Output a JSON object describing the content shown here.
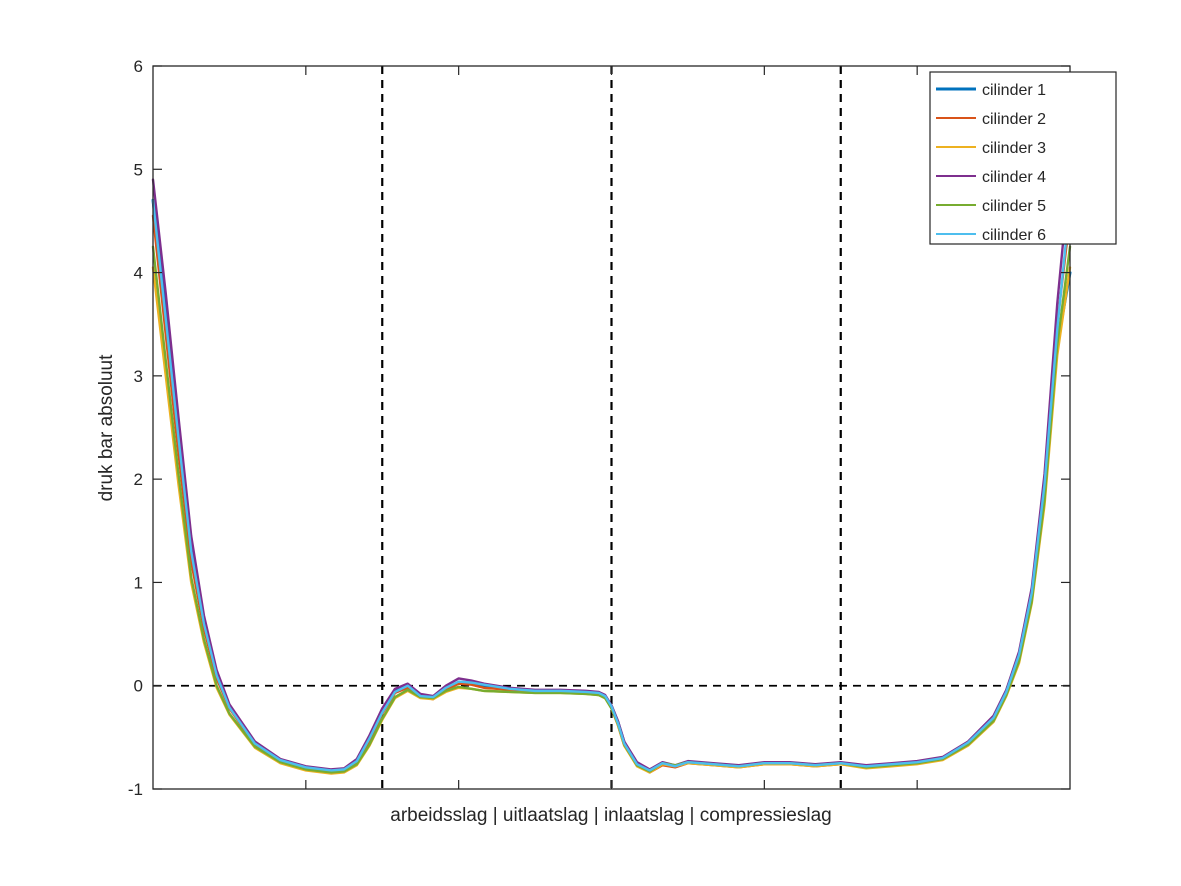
{
  "chart_data": {
    "type": "line",
    "title": "",
    "xlabel": "arbeidsslag | uitlaatslag | inlaatslag | compressieslag",
    "ylabel": "druk bar absoluut",
    "xlim": [
      0,
      720
    ],
    "ylim": [
      -1,
      6
    ],
    "yticks": [
      -1,
      0,
      1,
      2,
      3,
      4,
      5,
      6
    ],
    "xticks_unlabeled": [
      120,
      240,
      360,
      480,
      600
    ],
    "grid": false,
    "legend_position": "top-right",
    "reference_lines": {
      "vertical_dashed_x": [
        180,
        360,
        540
      ],
      "horizontal_dashed_y": [
        0
      ]
    },
    "series": [
      {
        "name": "cilinder 1",
        "color": "#0072BD",
        "x": [
          0,
          10,
          20,
          30,
          40,
          50,
          60,
          80,
          100,
          120,
          140,
          150,
          160,
          170,
          180,
          190,
          200,
          210,
          220,
          230,
          240,
          250,
          260,
          280,
          300,
          320,
          340,
          350,
          355,
          360,
          365,
          370,
          380,
          390,
          400,
          410,
          420,
          440,
          460,
          480,
          500,
          520,
          540,
          560,
          580,
          600,
          620,
          640,
          660,
          670,
          680,
          690,
          700,
          710,
          720
        ],
        "y": [
          4.7,
          3.6,
          2.4,
          1.3,
          0.6,
          0.1,
          -0.2,
          -0.55,
          -0.72,
          -0.79,
          -0.82,
          -0.81,
          -0.72,
          -0.5,
          -0.25,
          -0.05,
          0.0,
          -0.1,
          -0.12,
          -0.03,
          0.03,
          0.03,
          0.0,
          -0.03,
          -0.05,
          -0.05,
          -0.06,
          -0.07,
          -0.1,
          -0.2,
          -0.35,
          -0.55,
          -0.75,
          -0.82,
          -0.75,
          -0.78,
          -0.74,
          -0.76,
          -0.78,
          -0.75,
          -0.75,
          -0.77,
          -0.75,
          -0.78,
          -0.76,
          -0.74,
          -0.7,
          -0.55,
          -0.3,
          -0.05,
          0.3,
          0.9,
          1.9,
          3.3,
          4.0
        ]
      },
      {
        "name": "cilinder 2",
        "color": "#D95319",
        "x": [
          0,
          10,
          20,
          30,
          40,
          50,
          60,
          80,
          100,
          120,
          140,
          150,
          160,
          170,
          180,
          190,
          200,
          210,
          220,
          230,
          240,
          250,
          260,
          280,
          300,
          320,
          340,
          350,
          355,
          360,
          365,
          370,
          380,
          390,
          400,
          410,
          420,
          440,
          460,
          480,
          500,
          520,
          540,
          560,
          580,
          600,
          620,
          640,
          660,
          670,
          680,
          690,
          700,
          710,
          720
        ],
        "y": [
          4.55,
          3.4,
          2.25,
          1.2,
          0.55,
          0.07,
          -0.22,
          -0.57,
          -0.73,
          -0.8,
          -0.83,
          -0.82,
          -0.74,
          -0.53,
          -0.27,
          -0.07,
          -0.02,
          -0.11,
          -0.13,
          -0.04,
          0.02,
          0.01,
          -0.02,
          -0.04,
          -0.06,
          -0.06,
          -0.07,
          -0.08,
          -0.11,
          -0.22,
          -0.38,
          -0.58,
          -0.77,
          -0.84,
          -0.77,
          -0.79,
          -0.75,
          -0.77,
          -0.79,
          -0.76,
          -0.76,
          -0.78,
          -0.76,
          -0.79,
          -0.77,
          -0.75,
          -0.71,
          -0.56,
          -0.32,
          -0.07,
          0.28,
          0.88,
          1.95,
          3.5,
          4.55
        ]
      },
      {
        "name": "cilinder 3",
        "color": "#EDB120",
        "x": [
          0,
          10,
          20,
          30,
          40,
          50,
          60,
          80,
          100,
          120,
          140,
          150,
          160,
          170,
          180,
          190,
          200,
          210,
          220,
          230,
          240,
          250,
          260,
          280,
          300,
          320,
          340,
          350,
          355,
          360,
          365,
          370,
          380,
          390,
          400,
          410,
          420,
          440,
          460,
          480,
          500,
          520,
          540,
          560,
          580,
          600,
          620,
          640,
          660,
          670,
          680,
          690,
          700,
          710,
          720
        ],
        "y": [
          4.05,
          3.0,
          1.95,
          1.0,
          0.42,
          -0.02,
          -0.28,
          -0.6,
          -0.75,
          -0.82,
          -0.85,
          -0.84,
          -0.77,
          -0.58,
          -0.33,
          -0.12,
          -0.05,
          -0.12,
          -0.13,
          -0.06,
          -0.02,
          -0.03,
          -0.05,
          -0.06,
          -0.07,
          -0.07,
          -0.08,
          -0.09,
          -0.12,
          -0.22,
          -0.38,
          -0.58,
          -0.78,
          -0.84,
          -0.76,
          -0.78,
          -0.75,
          -0.77,
          -0.79,
          -0.76,
          -0.76,
          -0.78,
          -0.76,
          -0.8,
          -0.78,
          -0.76,
          -0.72,
          -0.58,
          -0.35,
          -0.1,
          0.22,
          0.8,
          1.75,
          3.2,
          4.05
        ]
      },
      {
        "name": "cilinder 4",
        "color": "#7E2F8E",
        "x": [
          0,
          10,
          20,
          30,
          40,
          50,
          60,
          80,
          100,
          120,
          140,
          150,
          160,
          170,
          180,
          190,
          200,
          210,
          220,
          230,
          240,
          250,
          260,
          280,
          300,
          320,
          340,
          350,
          355,
          360,
          365,
          370,
          380,
          390,
          400,
          410,
          420,
          440,
          460,
          480,
          500,
          520,
          540,
          560,
          580,
          600,
          620,
          640,
          660,
          670,
          680,
          690,
          700,
          710,
          720
        ],
        "y": [
          4.9,
          3.8,
          2.6,
          1.45,
          0.68,
          0.15,
          -0.18,
          -0.54,
          -0.71,
          -0.78,
          -0.81,
          -0.8,
          -0.71,
          -0.48,
          -0.22,
          -0.03,
          0.02,
          -0.08,
          -0.1,
          0.0,
          0.07,
          0.05,
          0.02,
          -0.02,
          -0.04,
          -0.04,
          -0.05,
          -0.06,
          -0.09,
          -0.19,
          -0.34,
          -0.54,
          -0.74,
          -0.81,
          -0.74,
          -0.77,
          -0.73,
          -0.75,
          -0.77,
          -0.74,
          -0.74,
          -0.76,
          -0.74,
          -0.77,
          -0.75,
          -0.73,
          -0.69,
          -0.54,
          -0.29,
          -0.04,
          0.33,
          0.95,
          2.05,
          3.7,
          5.0
        ]
      },
      {
        "name": "cilinder 5",
        "color": "#77AC30",
        "x": [
          0,
          10,
          20,
          30,
          40,
          50,
          60,
          80,
          100,
          120,
          140,
          150,
          160,
          170,
          180,
          190,
          200,
          210,
          220,
          230,
          240,
          250,
          260,
          280,
          300,
          320,
          340,
          350,
          355,
          360,
          365,
          370,
          380,
          390,
          400,
          410,
          420,
          440,
          460,
          480,
          500,
          520,
          540,
          560,
          580,
          600,
          620,
          640,
          660,
          670,
          680,
          690,
          700,
          710,
          720
        ],
        "y": [
          4.25,
          3.15,
          2.05,
          1.05,
          0.45,
          0.0,
          -0.27,
          -0.59,
          -0.74,
          -0.81,
          -0.84,
          -0.83,
          -0.76,
          -0.57,
          -0.32,
          -0.11,
          -0.04,
          -0.11,
          -0.12,
          -0.05,
          -0.01,
          -0.03,
          -0.05,
          -0.06,
          -0.07,
          -0.07,
          -0.08,
          -0.09,
          -0.12,
          -0.22,
          -0.37,
          -0.57,
          -0.77,
          -0.83,
          -0.75,
          -0.77,
          -0.74,
          -0.76,
          -0.78,
          -0.75,
          -0.75,
          -0.77,
          -0.75,
          -0.79,
          -0.77,
          -0.75,
          -0.71,
          -0.57,
          -0.34,
          -0.09,
          0.24,
          0.82,
          1.8,
          3.3,
          4.25
        ]
      },
      {
        "name": "cilinder 6",
        "color": "#4DBEEE",
        "x": [
          0,
          10,
          20,
          30,
          40,
          50,
          60,
          80,
          100,
          120,
          140,
          150,
          160,
          170,
          180,
          190,
          200,
          210,
          220,
          230,
          240,
          250,
          260,
          280,
          300,
          320,
          340,
          350,
          355,
          360,
          365,
          370,
          380,
          390,
          400,
          410,
          420,
          440,
          460,
          480,
          500,
          520,
          540,
          560,
          580,
          600,
          620,
          640,
          660,
          670,
          680,
          690,
          700,
          710,
          720
        ],
        "y": [
          4.7,
          3.55,
          2.4,
          1.3,
          0.6,
          0.1,
          -0.21,
          -0.56,
          -0.72,
          -0.79,
          -0.82,
          -0.81,
          -0.73,
          -0.51,
          -0.26,
          -0.06,
          0.0,
          -0.1,
          -0.11,
          -0.02,
          0.04,
          0.03,
          0.01,
          -0.03,
          -0.05,
          -0.05,
          -0.06,
          -0.07,
          -0.1,
          -0.2,
          -0.36,
          -0.56,
          -0.76,
          -0.82,
          -0.75,
          -0.78,
          -0.74,
          -0.76,
          -0.78,
          -0.75,
          -0.75,
          -0.77,
          -0.75,
          -0.78,
          -0.76,
          -0.74,
          -0.7,
          -0.55,
          -0.31,
          -0.06,
          0.3,
          0.9,
          1.95,
          3.45,
          4.7
        ]
      }
    ]
  }
}
